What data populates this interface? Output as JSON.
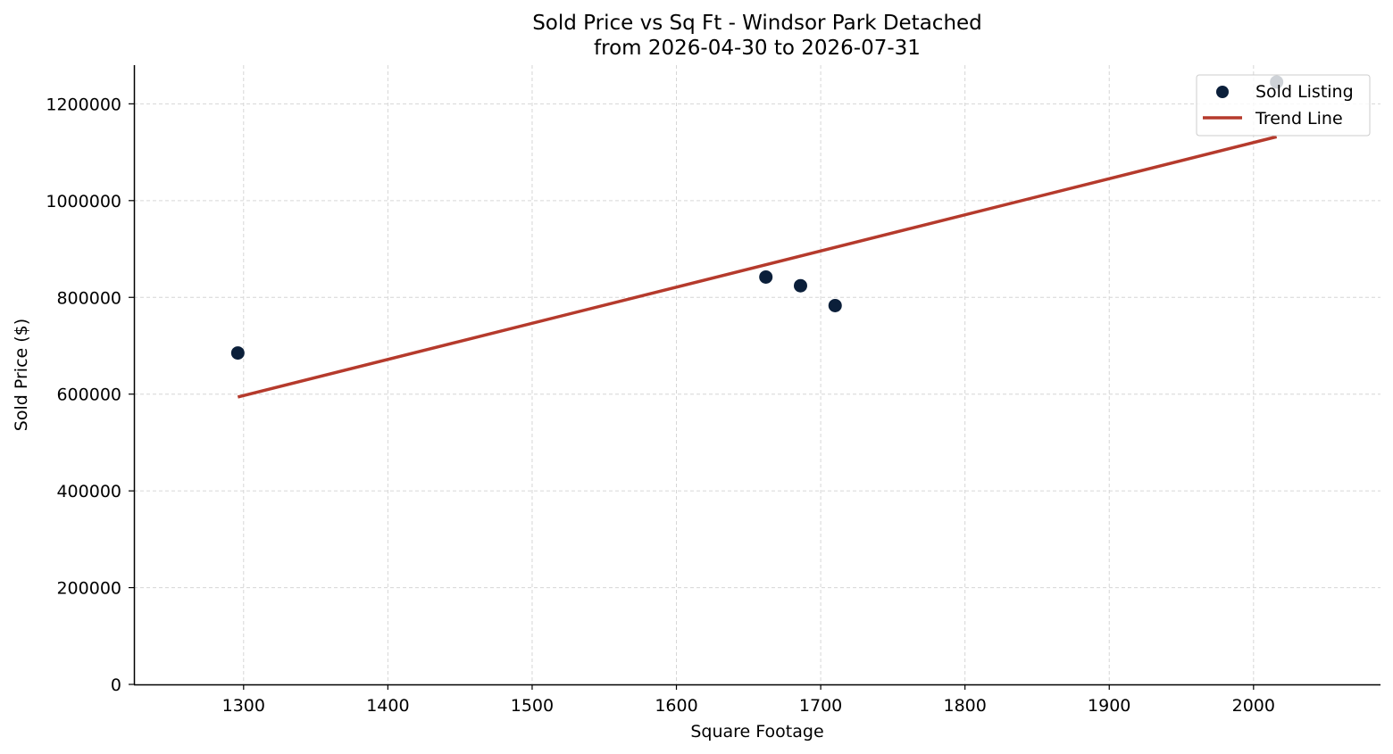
{
  "chart_data": {
    "type": "scatter",
    "title": "Sold Price vs Sq Ft - Windsor Park Detached",
    "subtitle": "from 2026-04-30 to 2026-07-31",
    "xlabel": "Square Footage",
    "ylabel": "Sold Price ($)",
    "xlim": [
      1224,
      2088
    ],
    "ylim": [
      0,
      1280000
    ],
    "x_ticks": [
      1300,
      1400,
      1500,
      1600,
      1700,
      1800,
      1900,
      2000
    ],
    "y_ticks": [
      0,
      200000,
      400000,
      600000,
      800000,
      1000000,
      1200000
    ],
    "x_tick_labels": [
      "1300",
      "1400",
      "1500",
      "1600",
      "1700",
      "1800",
      "1900",
      "2000"
    ],
    "y_tick_labels": [
      "0",
      "200000",
      "400000",
      "600000",
      "800000",
      "1000000",
      "1200000"
    ],
    "grid": true,
    "legend_position": "top-right",
    "series": [
      {
        "name": "Sold Listing",
        "kind": "scatter",
        "color": "#0b1f3a",
        "points": [
          {
            "x": 1296,
            "y": 685000
          },
          {
            "x": 1662,
            "y": 842000
          },
          {
            "x": 1686,
            "y": 824000
          },
          {
            "x": 1710,
            "y": 783000
          },
          {
            "x": 2016,
            "y": 1245000
          }
        ]
      },
      {
        "name": "Trend Line",
        "kind": "line",
        "color": "#b53a2c",
        "points": [
          {
            "x": 1296,
            "y": 594000
          },
          {
            "x": 2016,
            "y": 1132000
          }
        ]
      }
    ]
  }
}
